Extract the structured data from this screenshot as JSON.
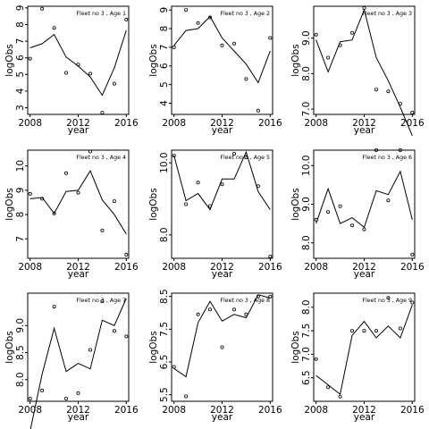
{
  "chart_data": [
    {
      "type": "line",
      "title": "Fleet no 3 , Age 1",
      "xlabel": "year",
      "ylabel": "logObs",
      "xlim": [
        2007.8,
        2016.2
      ],
      "ylim": [
        2.6,
        9.1
      ],
      "xticks": [
        2008,
        2012,
        2016
      ],
      "xtick_labels": [
        "2008",
        "2012",
        "2016"
      ],
      "yticks": [
        3,
        4,
        5,
        6,
        7,
        8,
        9
      ],
      "ytick_labels": [
        "3",
        "4",
        "5",
        "6",
        "7",
        "8",
        "9"
      ],
      "x": [
        2008,
        2009,
        2010,
        2011,
        2012,
        2013,
        2014,
        2015,
        2016
      ],
      "series": [
        {
          "kind": "points",
          "values": [
            5.95,
            8.95,
            7.8,
            5.1,
            5.6,
            5.05,
            2.7,
            4.45,
            8.3
          ]
        },
        {
          "kind": "line",
          "values": [
            6.6,
            6.85,
            7.4,
            6.05,
            5.5,
            4.85,
            3.75,
            5.4,
            7.65
          ]
        }
      ]
    },
    {
      "type": "line",
      "title": "Fleet no 3 , Age 2",
      "xlabel": "year",
      "ylabel": "logObs",
      "xlim": [
        2007.8,
        2016.2
      ],
      "ylim": [
        3.4,
        9.2
      ],
      "xticks": [
        2008,
        2012,
        2016
      ],
      "xtick_labels": [
        "2008",
        "2012",
        "2016"
      ],
      "yticks": [
        4,
        5,
        6,
        7,
        8,
        9
      ],
      "ytick_labels": [
        "4",
        "5",
        "6",
        "7",
        "8",
        "9"
      ],
      "x": [
        2008,
        2009,
        2010,
        2011,
        2012,
        2013,
        2014,
        2015,
        2016
      ],
      "series": [
        {
          "kind": "points",
          "values": [
            7.0,
            9.0,
            8.3,
            8.6,
            7.1,
            7.2,
            5.3,
            3.6,
            7.5
          ]
        },
        {
          "kind": "line",
          "values": [
            7.1,
            7.9,
            8.0,
            8.65,
            7.5,
            6.8,
            6.1,
            5.1,
            6.8
          ]
        }
      ]
    },
    {
      "type": "line",
      "title": "Fleet no 3 , Age 3",
      "xlabel": "year",
      "ylabel": "logObs",
      "xlim": [
        2007.8,
        2016.2
      ],
      "ylim": [
        6.85,
        9.9
      ],
      "xticks": [
        2008,
        2012,
        2016
      ],
      "xtick_labels": [
        "2008",
        "2012",
        "2016"
      ],
      "yticks": [
        7.0,
        8.0,
        9.0
      ],
      "ytick_labels": [
        "7.0",
        "8.0",
        "9.0"
      ],
      "x": [
        2008,
        2009,
        2010,
        2011,
        2012,
        2013,
        2014,
        2015,
        2016
      ],
      "series": [
        {
          "kind": "points",
          "values": [
            9.1,
            8.45,
            8.8,
            9.15,
            9.85,
            7.55,
            7.5,
            7.15,
            6.9
          ]
        },
        {
          "kind": "line",
          "values": [
            8.95,
            8.05,
            8.9,
            8.95,
            9.8,
            8.45,
            7.8,
            7.05,
            6.25
          ]
        }
      ]
    },
    {
      "type": "line",
      "title": "Fleet no 3 , Age 4",
      "xlabel": "year",
      "ylabel": "logObs",
      "xlim": [
        2007.8,
        2016.2
      ],
      "ylim": [
        6.2,
        10.65
      ],
      "xticks": [
        2008,
        2012,
        2016
      ],
      "xtick_labels": [
        "2008",
        "2012",
        "2016"
      ],
      "yticks": [
        7,
        8,
        9,
        10
      ],
      "ytick_labels": [
        "7",
        "8",
        "9",
        "10"
      ],
      "x": [
        2008,
        2009,
        2010,
        2011,
        2012,
        2013,
        2014,
        2015,
        2016
      ],
      "series": [
        {
          "kind": "points",
          "values": [
            8.85,
            8.65,
            8.05,
            9.7,
            8.9,
            10.6,
            7.35,
            8.55,
            6.35
          ]
        },
        {
          "kind": "line",
          "values": [
            8.65,
            8.7,
            8.05,
            8.95,
            9.0,
            9.8,
            8.6,
            8.0,
            7.2
          ]
        }
      ]
    },
    {
      "type": "line",
      "title": "Fleet no 3 , Age 5",
      "xlabel": "year",
      "ylabel": "logObs",
      "xlim": [
        2007.8,
        2016.2
      ],
      "ylim": [
        7.35,
        10.35
      ],
      "xticks": [
        2008,
        2012,
        2016
      ],
      "xtick_labels": [
        "2008",
        "2012",
        "2016"
      ],
      "yticks": [
        8.0,
        10.0
      ],
      "ytick_labels": [
        "8.0",
        "10.0"
      ],
      "x": [
        2008,
        2009,
        2010,
        2011,
        2012,
        2013,
        2014,
        2015,
        2016
      ],
      "series": [
        {
          "kind": "points",
          "values": [
            10.2,
            8.85,
            9.45,
            8.8,
            9.4,
            10.25,
            10.15,
            9.35,
            7.4
          ]
        },
        {
          "kind": "line",
          "values": [
            10.2,
            8.95,
            9.15,
            8.7,
            9.55,
            9.55,
            10.3,
            9.2,
            8.7
          ]
        }
      ]
    },
    {
      "type": "line",
      "title": "Fleet no 3 , Age 6",
      "xlabel": "year",
      "ylabel": "logObs",
      "xlim": [
        2007.8,
        2016.2
      ],
      "ylim": [
        7.6,
        10.4
      ],
      "xticks": [
        2008,
        2012,
        2016
      ],
      "xtick_labels": [
        "2008",
        "2012",
        "2016"
      ],
      "yticks": [
        8.0,
        9.0,
        10.0
      ],
      "ytick_labels": [
        "8.0",
        "9.0",
        "10.0"
      ],
      "x": [
        2008,
        2009,
        2010,
        2011,
        2012,
        2013,
        2014,
        2015,
        2016
      ],
      "series": [
        {
          "kind": "points",
          "values": [
            8.6,
            8.8,
            8.95,
            8.45,
            8.35,
            10.4,
            9.1,
            10.4,
            7.7
          ]
        },
        {
          "kind": "line",
          "values": [
            8.5,
            9.4,
            8.5,
            8.65,
            8.4,
            9.35,
            9.25,
            9.85,
            8.6
          ]
        }
      ]
    },
    {
      "type": "line",
      "title": "Fleet no 3 , Age 7",
      "xlabel": "year",
      "ylabel": "logObs",
      "xlim": [
        2007.8,
        2016.2
      ],
      "ylim": [
        7.6,
        9.6
      ],
      "xticks": [
        2008,
        2012,
        2016
      ],
      "xtick_labels": [
        "2008",
        "2012",
        "2016"
      ],
      "yticks": [
        8.0,
        8.5,
        9.0
      ],
      "ytick_labels": [
        "8.0",
        "8.5",
        "9.0"
      ],
      "x": [
        2008,
        2009,
        2010,
        2011,
        2012,
        2013,
        2014,
        2015,
        2016
      ],
      "series": [
        {
          "kind": "points",
          "values": [
            7.65,
            7.8,
            9.35,
            7.65,
            7.75,
            8.55,
            9.45,
            8.9,
            8.8
          ]
        },
        {
          "kind": "line",
          "values": [
            7.05,
            8.1,
            8.95,
            8.15,
            8.3,
            8.2,
            9.1,
            9.0,
            9.5
          ]
        }
      ]
    },
    {
      "type": "line",
      "title": "Fleet no 3 , Age 8",
      "xlabel": "year",
      "ylabel": "logObs",
      "xlim": [
        2007.8,
        2016.2
      ],
      "ylim": [
        5.3,
        8.6
      ],
      "xticks": [
        2008,
        2012,
        2016
      ],
      "xtick_labels": [
        "2008",
        "2012",
        "2016"
      ],
      "yticks": [
        5.5,
        6.5,
        7.5,
        8.5
      ],
      "ytick_labels": [
        "5.5",
        "6.5",
        "7.5",
        "8.5"
      ],
      "x": [
        2008,
        2009,
        2010,
        2011,
        2012,
        2013,
        2014,
        2015,
        2016
      ],
      "series": [
        {
          "kind": "points",
          "values": [
            6.35,
            5.45,
            7.95,
            8.1,
            6.95,
            8.1,
            7.95,
            8.5,
            8.5
          ]
        },
        {
          "kind": "line",
          "values": [
            6.3,
            6.05,
            7.7,
            8.35,
            7.75,
            7.95,
            7.85,
            8.55,
            8.45
          ]
        }
      ]
    },
    {
      "type": "line",
      "title": "Fleet no 3 , Age 9",
      "xlabel": "year",
      "ylabel": "logObs",
      "xlim": [
        2007.8,
        2016.2
      ],
      "ylim": [
        6.0,
        8.3
      ],
      "xticks": [
        2008,
        2012,
        2016
      ],
      "xtick_labels": [
        "2008",
        "2012",
        "2016"
      ],
      "yticks": [
        6.5,
        7.0,
        7.5,
        8.0
      ],
      "ytick_labels": [
        "6.5",
        "7.0",
        "7.5",
        "8.0"
      ],
      "x": [
        2008,
        2009,
        2010,
        2011,
        2012,
        2013,
        2014,
        2015,
        2016
      ],
      "series": [
        {
          "kind": "points",
          "values": [
            6.9,
            6.3,
            6.1,
            7.5,
            7.5,
            7.5,
            8.2,
            7.55,
            8.1
          ]
        },
        {
          "kind": "line",
          "values": [
            6.55,
            6.35,
            6.15,
            7.4,
            7.7,
            7.35,
            7.6,
            7.35,
            8.05
          ]
        }
      ]
    }
  ]
}
